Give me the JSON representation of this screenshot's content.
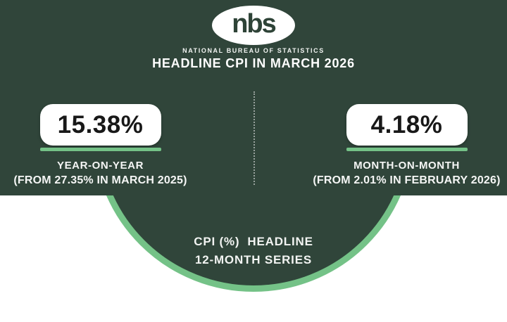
{
  "header": {
    "logo_text": "nbs",
    "org_name": "NATIONAL BUREAU OF STATISTICS",
    "title": "HEADLINE CPI IN MARCH 2026"
  },
  "stats": {
    "year_on_year": {
      "value": "15.38%",
      "label": "YEAR-ON-YEAR",
      "sublabel": "(FROM 27.35% IN MARCH 2025)"
    },
    "month_on_month": {
      "value": "4.18%",
      "label": "MONTH-ON-MONTH",
      "sublabel": "(FROM 2.01% IN FEBRUARY 2026)"
    }
  },
  "footer": {
    "line1": "CPI (%)  HEADLINE",
    "line2": "12-MONTH SERIES"
  },
  "colors": {
    "background_green": "#30453a",
    "accent_green": "#74c287",
    "card_white": "#ffffff",
    "number_text": "#181818"
  },
  "chart_data": {
    "type": "table",
    "title": "HEADLINE CPI IN MARCH 2026",
    "columns": [
      "metric",
      "value_pct",
      "previous_reference"
    ],
    "rows": [
      [
        "YEAR-ON-YEAR",
        15.38,
        "27.35% IN MARCH 2025"
      ],
      [
        "MONTH-ON-MONTH",
        4.18,
        "2.01% IN FEBRUARY 2026"
      ]
    ],
    "series_caption": "CPI (%) HEADLINE 12-MONTH SERIES"
  }
}
